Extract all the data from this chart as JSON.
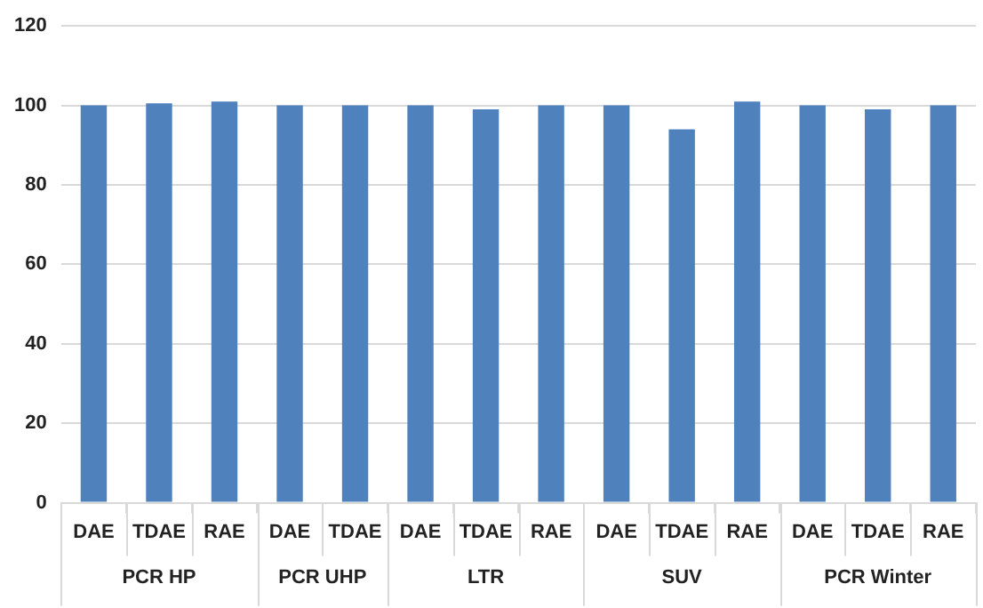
{
  "chart_data": {
    "type": "bar",
    "categories": [
      "DAE",
      "TDAE",
      "RAE",
      "DAE",
      "TDAE",
      "DAE",
      "TDAE",
      "RAE",
      "DAE",
      "TDAE",
      "RAE",
      "DAE",
      "TDAE",
      "RAE"
    ],
    "values": [
      100,
      100.5,
      101,
      100,
      100,
      100,
      99,
      100,
      100,
      94,
      101,
      100,
      99,
      100
    ],
    "color": "#4f81bd",
    "ylim": [
      0,
      120
    ],
    "yticks": [
      0,
      20,
      40,
      60,
      80,
      100,
      120
    ],
    "grid": "y",
    "legend": false,
    "annotations": [
      "PCR HP",
      "PCR UHP",
      "LTR",
      "SUV",
      "PCR Winter"
    ]
  }
}
